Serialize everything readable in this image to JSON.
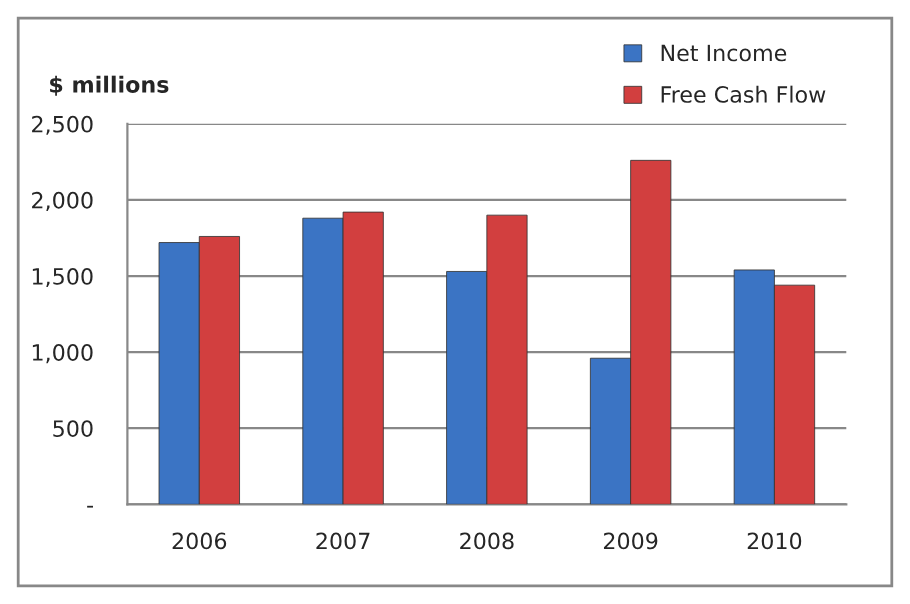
{
  "chart_data": {
    "type": "bar",
    "ylabel": "$ millions",
    "categories": [
      "2006",
      "2007",
      "2008",
      "2009",
      "2010"
    ],
    "series": [
      {
        "name": "Net Income",
        "color": "#3b74c4",
        "values": [
          1720,
          1880,
          1530,
          960,
          1540
        ]
      },
      {
        "name": "Free Cash Flow",
        "color": "#d23f3f",
        "values": [
          1760,
          1920,
          1900,
          2260,
          1440
        ]
      }
    ],
    "ylim": [
      0,
      2500
    ],
    "yticks": [
      {
        "value": 0,
        "label": "-"
      },
      {
        "value": 500,
        "label": "500"
      },
      {
        "value": 1000,
        "label": "1,000"
      },
      {
        "value": 1500,
        "label": "1,500"
      },
      {
        "value": 2000,
        "label": "2,000"
      },
      {
        "value": 2500,
        "label": "2,500"
      }
    ],
    "grid": "y",
    "legend": "top right"
  }
}
